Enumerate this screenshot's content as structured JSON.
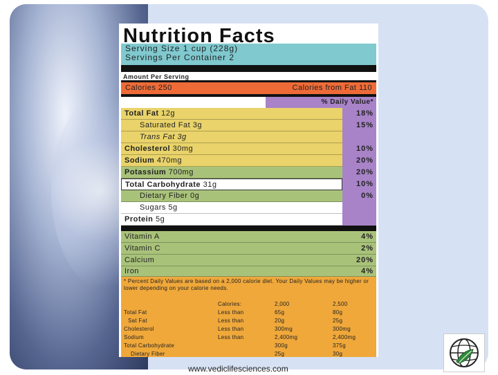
{
  "label": {
    "title": "Nutrition Facts",
    "serving_size": "Serving Size 1 cup (228g)",
    "servings_per_container": "Servings Per Container  2",
    "amount_per_serving": "Amount Per Serving",
    "calories": "Calories 250",
    "calories_from_fat": "Calories from Fat 110",
    "dv_header": "% Daily Value*",
    "nutrients": [
      {
        "name": "Total Fat",
        "amount": "12g",
        "pct": "18%"
      },
      {
        "name": "Saturated Fat",
        "amount": "3g",
        "pct": "15%"
      },
      {
        "name": "Trans Fat",
        "amount": "3g",
        "pct": ""
      },
      {
        "name": "Cholesterol",
        "amount": "30mg",
        "pct": "10%"
      },
      {
        "name": "Sodium",
        "amount": "470mg",
        "pct": "20%"
      },
      {
        "name": "Potassium",
        "amount": "700mg",
        "pct": "20%"
      },
      {
        "name": "Total Carbohydrate",
        "amount": "31g",
        "pct": "10%"
      },
      {
        "name": "Dietary Fiber",
        "amount": "0g",
        "pct": "0%"
      },
      {
        "name": "Sugars",
        "amount": "5g",
        "pct": ""
      },
      {
        "name": "Protein",
        "amount": "5g",
        "pct": ""
      }
    ],
    "vitamins": [
      {
        "name": "Vitamin A",
        "pct": "4%"
      },
      {
        "name": "Vitamin C",
        "pct": "2%"
      },
      {
        "name": "Calcium",
        "pct": "20%"
      },
      {
        "name": "Iron",
        "pct": "4%"
      }
    ],
    "footnote": "* Percent Daily Values are based on a 2,000 calorie diet. Your Daily Values may be higher or lower depending on your calorie needs.",
    "footer_table": {
      "header": [
        "",
        "Calories:",
        "2,000",
        "2,500"
      ],
      "rows": [
        [
          "Total Fat",
          "Less than",
          "65g",
          "80g"
        ],
        [
          "Sat Fat",
          "Less than",
          "20g",
          "25g"
        ],
        [
          "Cholesterol",
          "Less than",
          "300mg",
          "300mg"
        ],
        [
          "Sodium",
          "Less than",
          "2,400mg",
          "2,400mg"
        ],
        [
          "Total Carbohydrate",
          "",
          "300g",
          "375g"
        ],
        [
          "Dietary Fiber",
          "",
          "25g",
          "30g"
        ]
      ]
    }
  },
  "url": "www.vediclifesciences.com",
  "colors": {
    "serving_bg": "#7fc9cf",
    "calories_bg": "#ee6b37",
    "dv_purple": "#a883c8",
    "yellow": "#e9d36a",
    "green": "#a9c27a",
    "footer_orange": "#f0a83a"
  },
  "icons": {
    "logo": "globe-leaf-logo"
  }
}
